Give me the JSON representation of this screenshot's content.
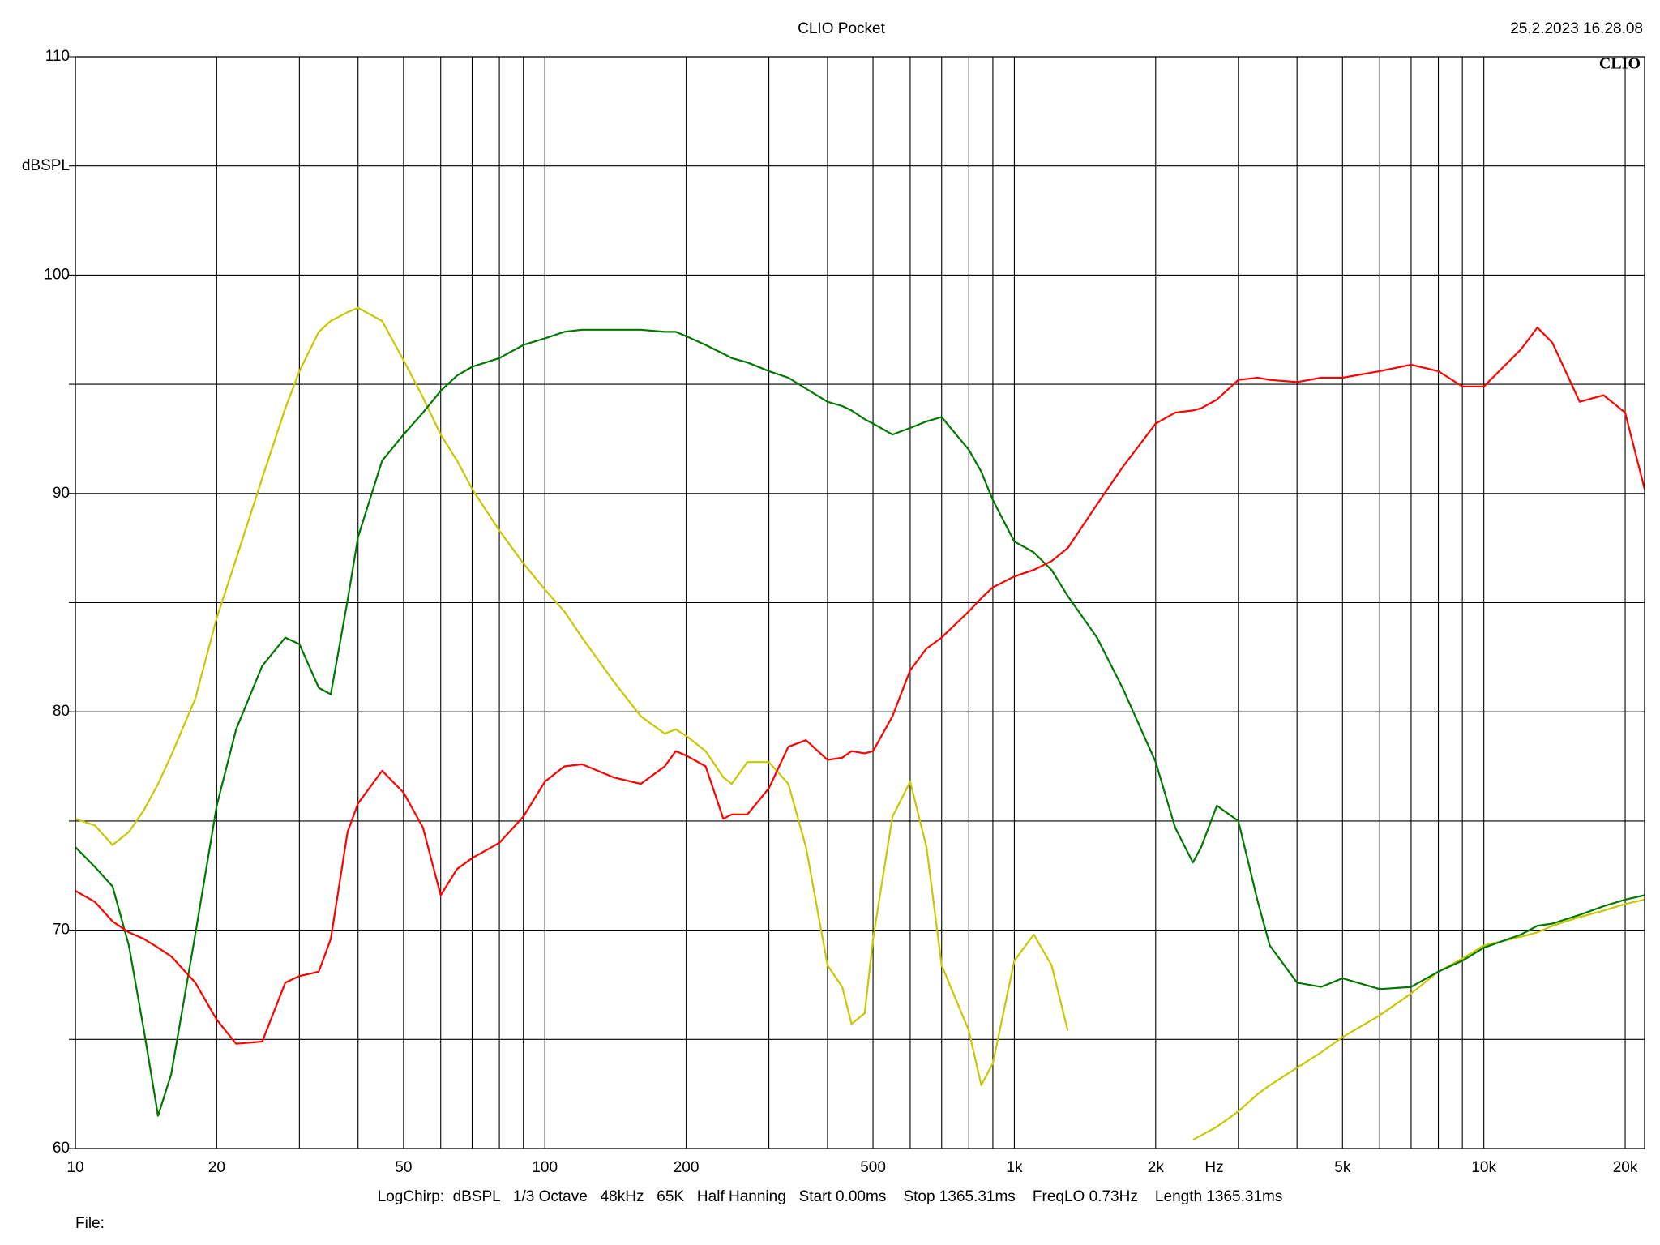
{
  "chart_data": {
    "type": "line",
    "title": "CLIO Pocket",
    "timestamp": "25.2.2023 16.28.08",
    "logo": "CLIO",
    "ylabel": "dBSPL",
    "xlabel": "Hz",
    "footer": "LogChirp:  dBSPL   1/3 Octave   48kHz   65K   Half Hanning   Start 0.00ms    Stop 1365.31ms    FreqLO 0.73Hz    Length 1365.31ms",
    "file_label": "File:",
    "xscale": "log",
    "grid": true,
    "xlim": [
      10,
      22000
    ],
    "ylim": [
      60,
      110
    ],
    "xticks": [
      10,
      20,
      50,
      100,
      200,
      500,
      {
        "value": 1000,
        "label": "1k"
      },
      {
        "value": 2000,
        "label": "2k"
      },
      {
        "value": 5000,
        "label": "5k"
      },
      {
        "value": 10000,
        "label": "10k"
      },
      {
        "value": 20000,
        "label": "20k"
      }
    ],
    "xgrid_minor": [
      30,
      40,
      60,
      70,
      80,
      90,
      300,
      400,
      600,
      700,
      800,
      900,
      3000,
      4000,
      6000,
      7000,
      8000,
      9000
    ],
    "yticks": [
      60,
      70,
      80,
      90,
      100,
      110
    ],
    "ygrid_minor": [
      65,
      75,
      85,
      95,
      105
    ],
    "x": [
      10,
      11,
      12,
      13,
      14,
      15,
      16,
      18,
      20,
      22,
      25,
      28,
      30,
      33,
      35,
      38,
      40,
      45,
      50,
      55,
      60,
      65,
      70,
      80,
      90,
      100,
      110,
      120,
      140,
      160,
      180,
      190,
      200,
      220,
      240,
      250,
      270,
      300,
      330,
      360,
      400,
      430,
      450,
      480,
      500,
      550,
      600,
      650,
      700,
      800,
      850,
      900,
      1000,
      1100,
      1200,
      1300,
      1500,
      1700,
      2000,
      2200,
      2400,
      2500,
      2700,
      3000,
      3300,
      3500,
      4000,
      4500,
      5000,
      6000,
      7000,
      8000,
      9000,
      10000,
      12000,
      13000,
      14000,
      16000,
      18000,
      20000,
      22000
    ],
    "series": [
      {
        "color": "#c8c800",
        "values": [
          75.1,
          74.8,
          73.9,
          74.5,
          75.5,
          76.7,
          78.0,
          80.6,
          84.3,
          87.0,
          90.7,
          93.9,
          95.6,
          97.4,
          97.9,
          98.3,
          98.5,
          97.9,
          96.1,
          94.4,
          92.7,
          91.5,
          90.2,
          88.3,
          86.8,
          85.6,
          84.6,
          83.4,
          81.4,
          79.8,
          79.0,
          79.2,
          78.9,
          78.2,
          77.0,
          76.7,
          77.7,
          77.7,
          76.7,
          73.8,
          68.4,
          67.4,
          65.7,
          66.2,
          69.6,
          75.2,
          76.8,
          73.8,
          68.4,
          65.4,
          62.9,
          63.9,
          68.6,
          69.8,
          68.4,
          65.4,
          null,
          null,
          null,
          null,
          60.4,
          60.6,
          61.0,
          61.7,
          62.5,
          62.9,
          63.7,
          64.4,
          65.1,
          66.1,
          67.1,
          68.1,
          68.7,
          69.3,
          69.7,
          69.9,
          70.2,
          70.6,
          70.9,
          71.2,
          71.4
        ]
      },
      {
        "color": "#007800",
        "values": [
          73.8,
          72.9,
          72.0,
          69.3,
          65.4,
          61.5,
          63.4,
          69.8,
          75.7,
          79.2,
          82.1,
          83.4,
          83.1,
          81.1,
          80.8,
          85.1,
          88.0,
          91.5,
          92.7,
          93.7,
          94.7,
          95.4,
          95.8,
          96.2,
          96.8,
          97.1,
          97.4,
          97.5,
          97.5,
          97.5,
          97.4,
          97.4,
          97.2,
          96.8,
          96.4,
          96.2,
          96.0,
          95.6,
          95.3,
          94.8,
          94.2,
          94.0,
          93.8,
          93.4,
          93.2,
          92.7,
          93.0,
          93.3,
          93.5,
          92.0,
          91.0,
          89.7,
          87.8,
          87.3,
          86.5,
          85.3,
          83.4,
          81.1,
          77.7,
          74.7,
          73.1,
          73.8,
          75.7,
          75.0,
          71.3,
          69.3,
          67.6,
          67.4,
          67.8,
          67.3,
          67.4,
          68.1,
          68.6,
          69.2,
          69.8,
          70.2,
          70.3,
          70.7,
          71.1,
          71.4,
          71.6
        ]
      },
      {
        "color": "#ff0000",
        "values": [
          71.8,
          71.3,
          70.4,
          69.9,
          69.6,
          69.2,
          68.8,
          67.6,
          65.9,
          64.8,
          64.9,
          67.6,
          67.9,
          68.1,
          69.6,
          74.5,
          75.8,
          77.3,
          76.3,
          74.7,
          71.6,
          72.8,
          73.3,
          74.0,
          75.2,
          76.8,
          77.5,
          77.6,
          77.0,
          76.7,
          77.5,
          78.2,
          78.0,
          77.5,
          75.1,
          75.3,
          75.3,
          76.5,
          78.4,
          78.7,
          77.8,
          77.9,
          78.2,
          78.1,
          78.2,
          79.8,
          81.9,
          82.9,
          83.4,
          84.6,
          85.2,
          85.7,
          86.2,
          86.5,
          86.9,
          87.5,
          89.5,
          91.2,
          93.2,
          93.7,
          93.8,
          93.9,
          94.3,
          95.2,
          95.3,
          95.2,
          95.1,
          95.3,
          95.3,
          95.6,
          95.9,
          95.6,
          94.9,
          94.9,
          96.6,
          97.6,
          96.9,
          94.2,
          94.5,
          93.7,
          90.2
        ]
      }
    ]
  }
}
